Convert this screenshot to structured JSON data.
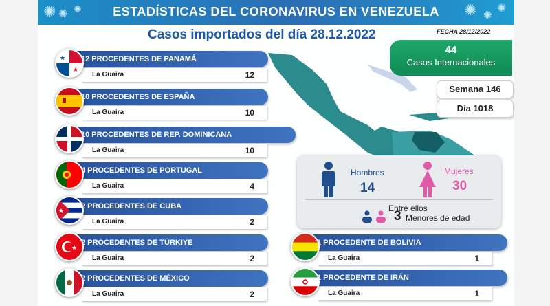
{
  "header": {
    "title": "ESTADÍSTICAS DEL CORONAVIRUS EN VENEZUELA"
  },
  "subtitle": "Casos importados del día 28.12.2022",
  "fecha": "FECHA 28/12/2022",
  "summary": {
    "total": "44",
    "total_label": "Casos Internacionales",
    "semana": "Semana 146",
    "dia": "Día 1018"
  },
  "gender": {
    "hombres_label": "Hombres",
    "hombres": "14",
    "mujeres_label": "Mujeres",
    "mujeres": "30",
    "entre_label": "Entre ellos",
    "menores": "3",
    "menores_label": "Menores de edad",
    "male_color": "#1e4f8c",
    "female_color": "#e05aa6"
  },
  "origins": [
    {
      "title": "12 PROCEDENTES DE PANAMÁ",
      "place": "La Guaira",
      "count": "12",
      "flag": "panama-flag-icon"
    },
    {
      "title": "10 PROCEDENTES DE ESPAÑA",
      "place": "La Guaira",
      "count": "10",
      "flag": "spain-flag-icon"
    },
    {
      "title": "10 PROCEDENTES DE REP. DOMINICANA",
      "place": "La Guaira",
      "count": "10",
      "flag": "dominican-republic-flag-icon"
    },
    {
      "title": "4 PROCEDENTES DE PORTUGAL",
      "place": "La Guaira",
      "count": "4",
      "flag": "portugal-flag-icon"
    },
    {
      "title": "2 PROCEDENTES DE CUBA",
      "place": "La Guaira",
      "count": "2",
      "flag": "cuba-flag-icon"
    },
    {
      "title": "2 PROCEDENTES DE TÜRKIYE",
      "place": "La Guaira",
      "count": "2",
      "flag": "turkey-flag-icon"
    },
    {
      "title": "2 PROCEDENTES DE MÉXICO",
      "place": "La Guaira",
      "count": "2",
      "flag": "mexico-flag-icon"
    },
    {
      "title": "1 PROCEDENTE DE BOLIVIA",
      "place": "La Guaira",
      "count": "1",
      "flag": "bolivia-flag-icon"
    },
    {
      "title": "1 PROCEDENTE DE IRÁN",
      "place": "La Guaira",
      "count": "1",
      "flag": "iran-flag-icon"
    }
  ]
}
